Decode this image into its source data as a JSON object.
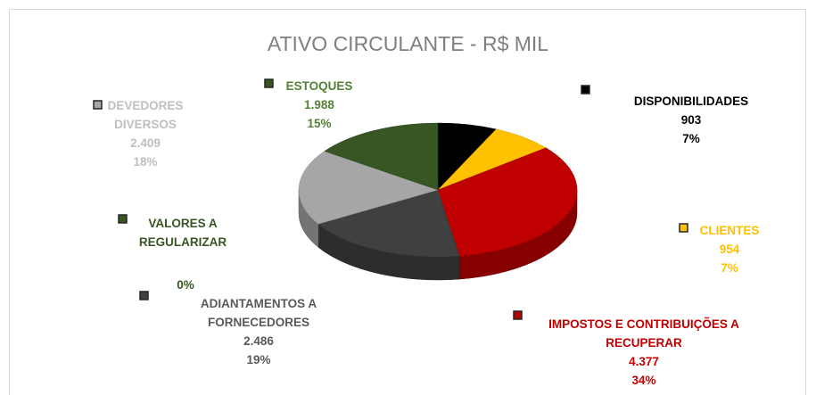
{
  "chart_data": {
    "type": "pie",
    "title": "ATIVO CIRCULANTE - R$ MIL",
    "categories": [
      "DISPONIBILIDADES",
      "CLIENTES",
      "IMPOSTOS E CONTRIBUIÇÕES A RECUPERAR",
      "ADIANTAMENTOS A FORNECEDORES",
      "VALORES A REGULARIZAR",
      "DEVEDORES DIVERSOS",
      "ESTOQUES"
    ],
    "values": [
      903,
      954,
      4377,
      2486,
      0,
      2409,
      1988
    ],
    "value_labels": [
      "903",
      "954",
      "4.377",
      "2.486",
      null,
      "2.409",
      "1.988"
    ],
    "percent_labels": [
      "7%",
      "7%",
      "34%",
      "19%",
      "0%",
      "18%",
      "15%"
    ],
    "colors": [
      "#000000",
      "#ffc000",
      "#c00000",
      "#404040",
      "#375623",
      "#a6a6a6",
      "#375623"
    ],
    "label_colors": [
      "#000000",
      "#ffc000",
      "#c00000",
      "#595959",
      "#375623",
      "#bfbfbf",
      "#548235"
    ]
  }
}
